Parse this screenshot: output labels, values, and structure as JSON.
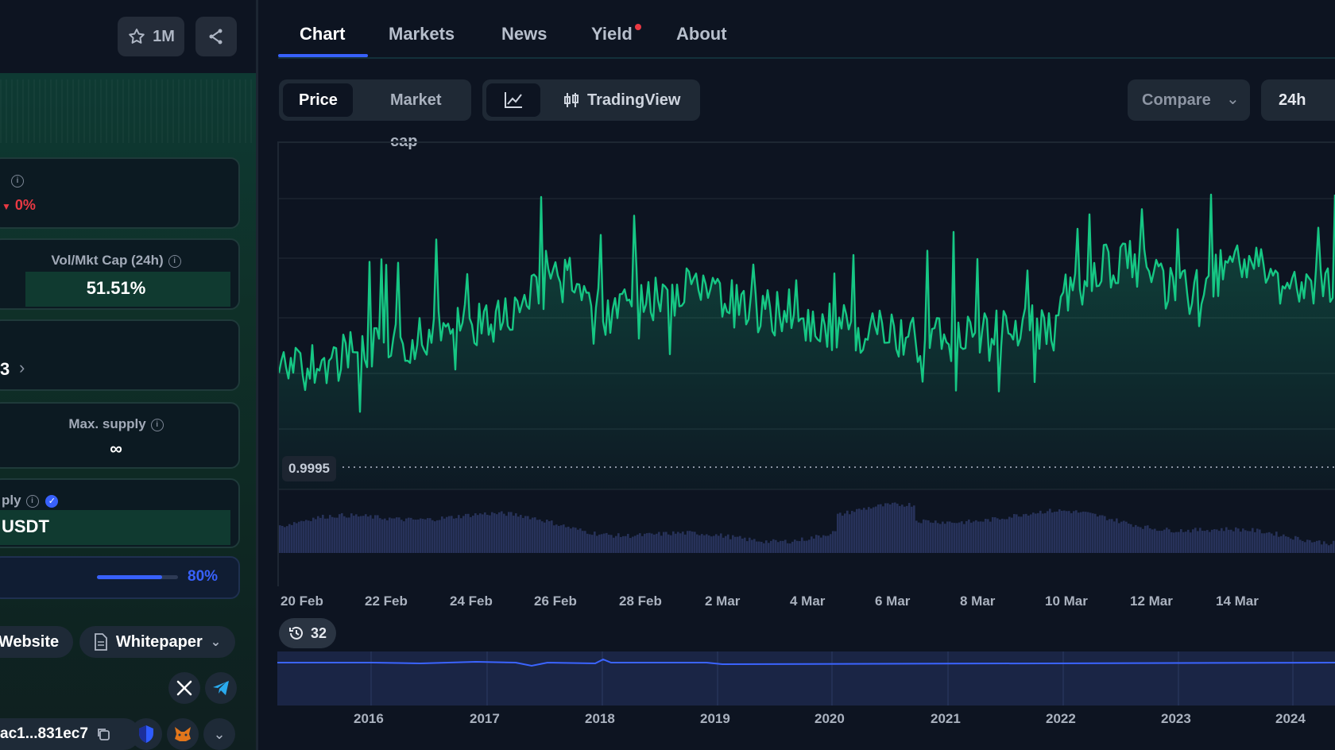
{
  "left": {
    "watch_count": "1M",
    "change": "0%",
    "vol_mkt_cap": {
      "title": "Vol/Mkt Cap (24h)",
      "value": "51.51%"
    },
    "partial_number": "3",
    "max_supply": {
      "title": "Max. supply",
      "value": "∞"
    },
    "supply": {
      "title_partial": "ply",
      "value_partial": "USDT"
    },
    "progress": {
      "label": "80%",
      "fraction": 0.8
    },
    "links": {
      "website": "Website",
      "whitepaper": "Whitepaper"
    },
    "contract": "ac1...831ec7"
  },
  "tabs": [
    {
      "label": "Chart",
      "active": true
    },
    {
      "label": "Markets",
      "active": false
    },
    {
      "label": "News",
      "active": false
    },
    {
      "label": "Yield",
      "active": false,
      "dot": true
    },
    {
      "label": "About",
      "active": false
    }
  ],
  "controls": {
    "price": "Price",
    "market_cap": "Market cap",
    "tradingview": "TradingView",
    "compare": "Compare",
    "range": "24h"
  },
  "chart": {
    "price_reference": "0.9995",
    "x_ticks": [
      "20 Feb",
      "22 Feb",
      "24 Feb",
      "26 Feb",
      "28 Feb",
      "2 Mar",
      "4 Mar",
      "6 Mar",
      "8 Mar",
      "10 Mar",
      "12 Mar",
      "14 Mar"
    ],
    "history_badge": "32",
    "nav_years": [
      "2016",
      "2017",
      "2018",
      "2019",
      "2020",
      "2021",
      "2022",
      "2023",
      "2024"
    ]
  },
  "colors": {
    "accent": "#3861fb",
    "line": "#16c784",
    "negative": "#ea3943"
  }
}
